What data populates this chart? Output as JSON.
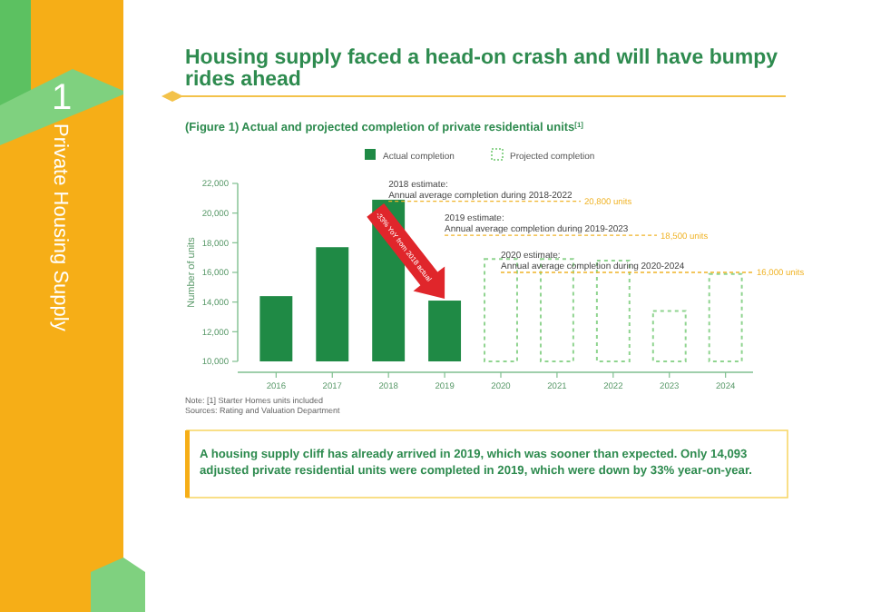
{
  "chart_data": {
    "type": "bar",
    "title": "Housing supply faced a head-on crash and will have bumpy rides ahead",
    "subtitle": "(Figure 1) Actual and projected completion of private residential units$^{[1]}$",
    "ylabel": "Number of units",
    "categories": [
      "2016",
      "2017",
      "2018",
      "2019",
      "2020",
      "2021",
      "2022",
      "2023",
      "2024"
    ],
    "series": [
      {
        "name": "Actual completion",
        "color": "#1f8a45",
        "values": [
          14400,
          17700,
          20900,
          14100,
          null,
          null,
          null,
          null,
          null
        ]
      },
      {
        "name": "Projected completion",
        "color": "#8fd48f",
        "line_style": "dashed",
        "values": [
          null,
          null,
          null,
          null,
          16900,
          16900,
          16800,
          13400,
          15900
        ]
      }
    ],
    "ylim": [
      10000,
      22000
    ],
    "yticks": [
      {
        "value": 10000,
        "label": "10,000"
      },
      {
        "value": 12000,
        "label": "12,000"
      },
      {
        "value": 14000,
        "label": "14,000"
      },
      {
        "value": 16000,
        "label": "16,000"
      },
      {
        "value": 18000,
        "label": "18,000"
      },
      {
        "value": 20000,
        "label": "20,000"
      },
      {
        "value": 22000,
        "label": "22,000"
      }
    ],
    "legend": "top",
    "grid": false,
    "ref_lines": [
      {
        "axis": "y",
        "value": 20800,
        "label": "20,800 units",
        "color": "#f0b429",
        "line_style": "dashed"
      },
      {
        "axis": "y",
        "value": 18500,
        "label": "18,500 units",
        "color": "#f0b429",
        "line_style": "dashed"
      },
      {
        "axis": "y",
        "value": 16000,
        "label": "16,000 units",
        "color": "#f0b429",
        "line_style": "dashed"
      }
    ],
    "annotations": [
      "1",
      "Private Housing Supply",
      "Note: [1] Starter Homes units included",
      "Sources: Rating and Valuation Department",
      "A housing supply cliff has already arrived in 2019, which was sooner than expected. Only 14,093 adjusted private residential units were completed in 2019, which were down by 33% year-on-year.",
      {
        "text": "-33% YoY from 2018 actual",
        "x": "2019",
        "y": 14100
      },
      {
        "text": "2018 estimate:\nAnnual average completion during 2018-2022",
        "x": "2018",
        "y": 20800
      },
      {
        "text": "2019 estimate:\nAnnual average completion during 2019-2023",
        "x": "2019",
        "y": 18500
      },
      {
        "text": "2020 estimate:\nAnnual average completion during 2020-2024",
        "x": "2020",
        "y": 16000
      }
    ]
  }
}
